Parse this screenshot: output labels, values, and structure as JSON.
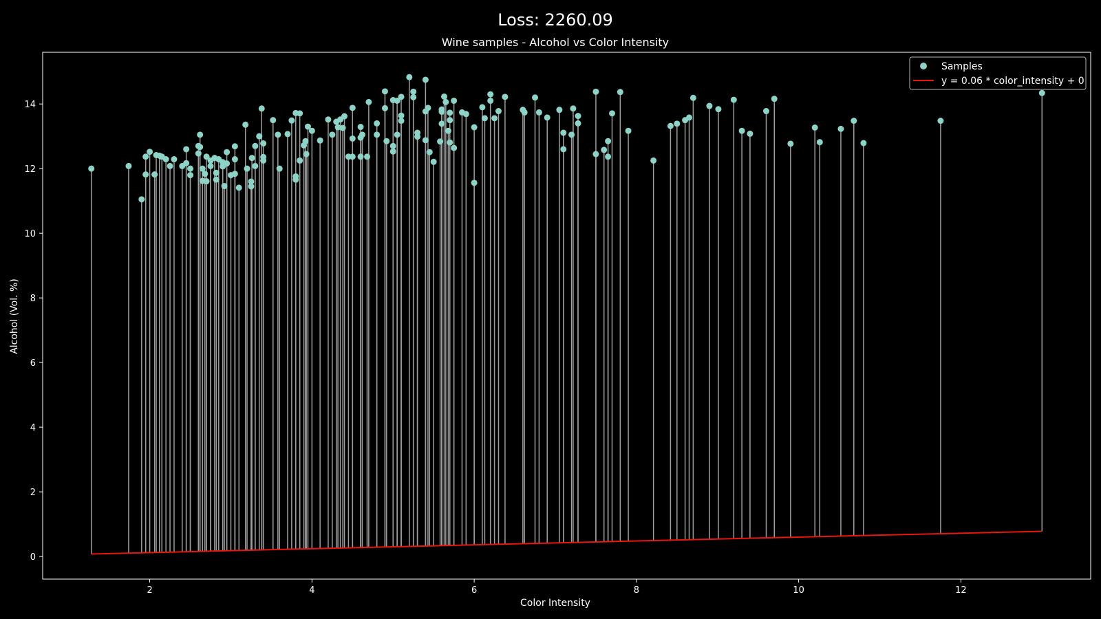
{
  "chart_data": {
    "type": "scatter",
    "title": "Wine samples - Alcohol vs Color Intensity",
    "suptitle": "Loss: 2260.09",
    "xlabel": "Color Intensity",
    "ylabel": "Alcohol (Vol. %)",
    "xlim": [
      0.68,
      13.6
    ],
    "ylim": [
      -0.7,
      15.6
    ],
    "xticks": [
      "2",
      "4",
      "6",
      "8",
      "10",
      "12"
    ],
    "yticks": [
      "0",
      "2",
      "4",
      "6",
      "8",
      "10",
      "12",
      "14"
    ],
    "legend_position": "top-right",
    "grid": false,
    "colors": {
      "background": "#000000",
      "samples": "#8dd3c7",
      "residual": "#9e9e9e",
      "fit_line": "#e8170f",
      "text": "#ffffff"
    },
    "series": [
      {
        "name": "Samples",
        "kind": "scatter",
        "points": [
          [
            1.28,
            12.0
          ],
          [
            1.74,
            12.08
          ],
          [
            1.9,
            11.05
          ],
          [
            1.95,
            12.37
          ],
          [
            1.95,
            11.82
          ],
          [
            2.0,
            12.52
          ],
          [
            2.06,
            11.82
          ],
          [
            2.08,
            12.42
          ],
          [
            2.12,
            12.4
          ],
          [
            2.15,
            12.37
          ],
          [
            2.2,
            12.29
          ],
          [
            2.25,
            12.08
          ],
          [
            2.3,
            12.29
          ],
          [
            2.4,
            12.08
          ],
          [
            2.45,
            12.6
          ],
          [
            2.45,
            12.17
          ],
          [
            2.5,
            12.0
          ],
          [
            2.5,
            11.8
          ],
          [
            2.6,
            12.7
          ],
          [
            2.6,
            12.47
          ],
          [
            2.62,
            13.05
          ],
          [
            2.62,
            12.67
          ],
          [
            2.65,
            11.62
          ],
          [
            2.65,
            12.0
          ],
          [
            2.68,
            11.84
          ],
          [
            2.7,
            11.61
          ],
          [
            2.7,
            12.37
          ],
          [
            2.75,
            12.25
          ],
          [
            2.75,
            12.08
          ],
          [
            2.8,
            12.33
          ],
          [
            2.82,
            11.87
          ],
          [
            2.82,
            11.66
          ],
          [
            2.85,
            12.29
          ],
          [
            2.9,
            12.2
          ],
          [
            2.9,
            12.07
          ],
          [
            2.92,
            11.46
          ],
          [
            2.95,
            12.51
          ],
          [
            2.95,
            12.16
          ],
          [
            3.0,
            11.8
          ],
          [
            3.05,
            12.69
          ],
          [
            3.05,
            11.84
          ],
          [
            3.05,
            12.29
          ],
          [
            3.1,
            11.41
          ],
          [
            3.18,
            13.36
          ],
          [
            3.2,
            12.0
          ],
          [
            3.25,
            11.45
          ],
          [
            3.26,
            12.33
          ],
          [
            3.25,
            11.6
          ],
          [
            3.3,
            12.7
          ],
          [
            3.3,
            12.08
          ],
          [
            3.35,
            13.0
          ],
          [
            3.38,
            13.86
          ],
          [
            3.4,
            12.36
          ],
          [
            3.4,
            12.78
          ],
          [
            3.4,
            12.25
          ],
          [
            3.52,
            13.5
          ],
          [
            3.58,
            13.05
          ],
          [
            3.6,
            12.0
          ],
          [
            3.7,
            13.07
          ],
          [
            3.75,
            13.49
          ],
          [
            3.8,
            13.72
          ],
          [
            3.8,
            11.66
          ],
          [
            3.8,
            11.76
          ],
          [
            3.85,
            13.71
          ],
          [
            3.85,
            12.25
          ],
          [
            3.9,
            12.72
          ],
          [
            3.92,
            12.85
          ],
          [
            3.93,
            12.45
          ],
          [
            3.95,
            13.3
          ],
          [
            4.0,
            13.17
          ],
          [
            4.1,
            12.87
          ],
          [
            4.2,
            13.52
          ],
          [
            4.25,
            13.05
          ],
          [
            4.3,
            13.45
          ],
          [
            4.32,
            13.28
          ],
          [
            4.35,
            13.52
          ],
          [
            4.38,
            13.26
          ],
          [
            4.4,
            13.62
          ],
          [
            4.45,
            12.37
          ],
          [
            4.5,
            13.88
          ],
          [
            4.5,
            12.93
          ],
          [
            4.5,
            12.37
          ],
          [
            4.6,
            13.29
          ],
          [
            4.6,
            12.96
          ],
          [
            4.62,
            13.05
          ],
          [
            4.6,
            12.37
          ],
          [
            4.68,
            12.37
          ],
          [
            4.7,
            14.06
          ],
          [
            4.8,
            13.4
          ],
          [
            4.8,
            13.05
          ],
          [
            4.9,
            14.39
          ],
          [
            4.9,
            13.87
          ],
          [
            4.92,
            12.85
          ],
          [
            5.0,
            14.12
          ],
          [
            5.0,
            12.53
          ],
          [
            5.0,
            12.7
          ],
          [
            5.05,
            13.05
          ],
          [
            5.05,
            14.1
          ],
          [
            5.1,
            14.22
          ],
          [
            5.1,
            13.64
          ],
          [
            5.1,
            13.48
          ],
          [
            5.2,
            14.83
          ],
          [
            5.25,
            14.38
          ],
          [
            5.25,
            14.21
          ],
          [
            5.3,
            12.99
          ],
          [
            5.3,
            13.11
          ],
          [
            5.4,
            14.75
          ],
          [
            5.4,
            13.77
          ],
          [
            5.4,
            12.88
          ],
          [
            5.43,
            13.88
          ],
          [
            5.45,
            12.51
          ],
          [
            5.5,
            12.21
          ],
          [
            5.58,
            12.84
          ],
          [
            5.6,
            13.83
          ],
          [
            5.6,
            13.76
          ],
          [
            5.6,
            13.39
          ],
          [
            5.63,
            14.23
          ],
          [
            5.65,
            14.06
          ],
          [
            5.68,
            13.17
          ],
          [
            5.7,
            13.73
          ],
          [
            5.7,
            13.5
          ],
          [
            5.7,
            12.81
          ],
          [
            5.75,
            14.1
          ],
          [
            5.75,
            12.64
          ],
          [
            5.85,
            13.74
          ],
          [
            5.9,
            13.69
          ],
          [
            6.0,
            13.28
          ],
          [
            6.0,
            11.56
          ],
          [
            6.1,
            13.9
          ],
          [
            6.13,
            13.56
          ],
          [
            6.2,
            14.3
          ],
          [
            6.2,
            14.1
          ],
          [
            6.25,
            13.56
          ],
          [
            6.3,
            13.78
          ],
          [
            6.38,
            14.22
          ],
          [
            6.6,
            13.82
          ],
          [
            6.62,
            13.74
          ],
          [
            6.75,
            14.2
          ],
          [
            6.8,
            13.74
          ],
          [
            6.9,
            13.58
          ],
          [
            7.05,
            13.82
          ],
          [
            7.1,
            13.11
          ],
          [
            7.1,
            12.6
          ],
          [
            7.2,
            13.05
          ],
          [
            7.22,
            13.86
          ],
          [
            7.28,
            13.63
          ],
          [
            7.28,
            13.4
          ],
          [
            7.5,
            14.38
          ],
          [
            7.5,
            12.45
          ],
          [
            7.6,
            12.58
          ],
          [
            7.65,
            12.85
          ],
          [
            7.65,
            12.37
          ],
          [
            7.7,
            13.71
          ],
          [
            7.8,
            14.37
          ],
          [
            7.9,
            13.17
          ],
          [
            8.21,
            12.25
          ],
          [
            8.42,
            13.32
          ],
          [
            8.5,
            13.39
          ],
          [
            8.6,
            13.5
          ],
          [
            8.65,
            13.58
          ],
          [
            8.7,
            14.19
          ],
          [
            8.9,
            13.94
          ],
          [
            9.01,
            13.84
          ],
          [
            9.2,
            14.13
          ],
          [
            9.3,
            13.17
          ],
          [
            9.4,
            13.08
          ],
          [
            9.6,
            13.78
          ],
          [
            9.7,
            14.16
          ],
          [
            9.9,
            12.77
          ],
          [
            10.2,
            13.27
          ],
          [
            10.26,
            12.82
          ],
          [
            10.52,
            13.23
          ],
          [
            10.68,
            13.48
          ],
          [
            10.8,
            12.79
          ],
          [
            11.75,
            13.48
          ],
          [
            13.0,
            14.34
          ]
        ]
      },
      {
        "name": "y = 0.06 * color_intensity + 0",
        "kind": "line",
        "slope": 0.06,
        "intercept": 0
      }
    ]
  }
}
